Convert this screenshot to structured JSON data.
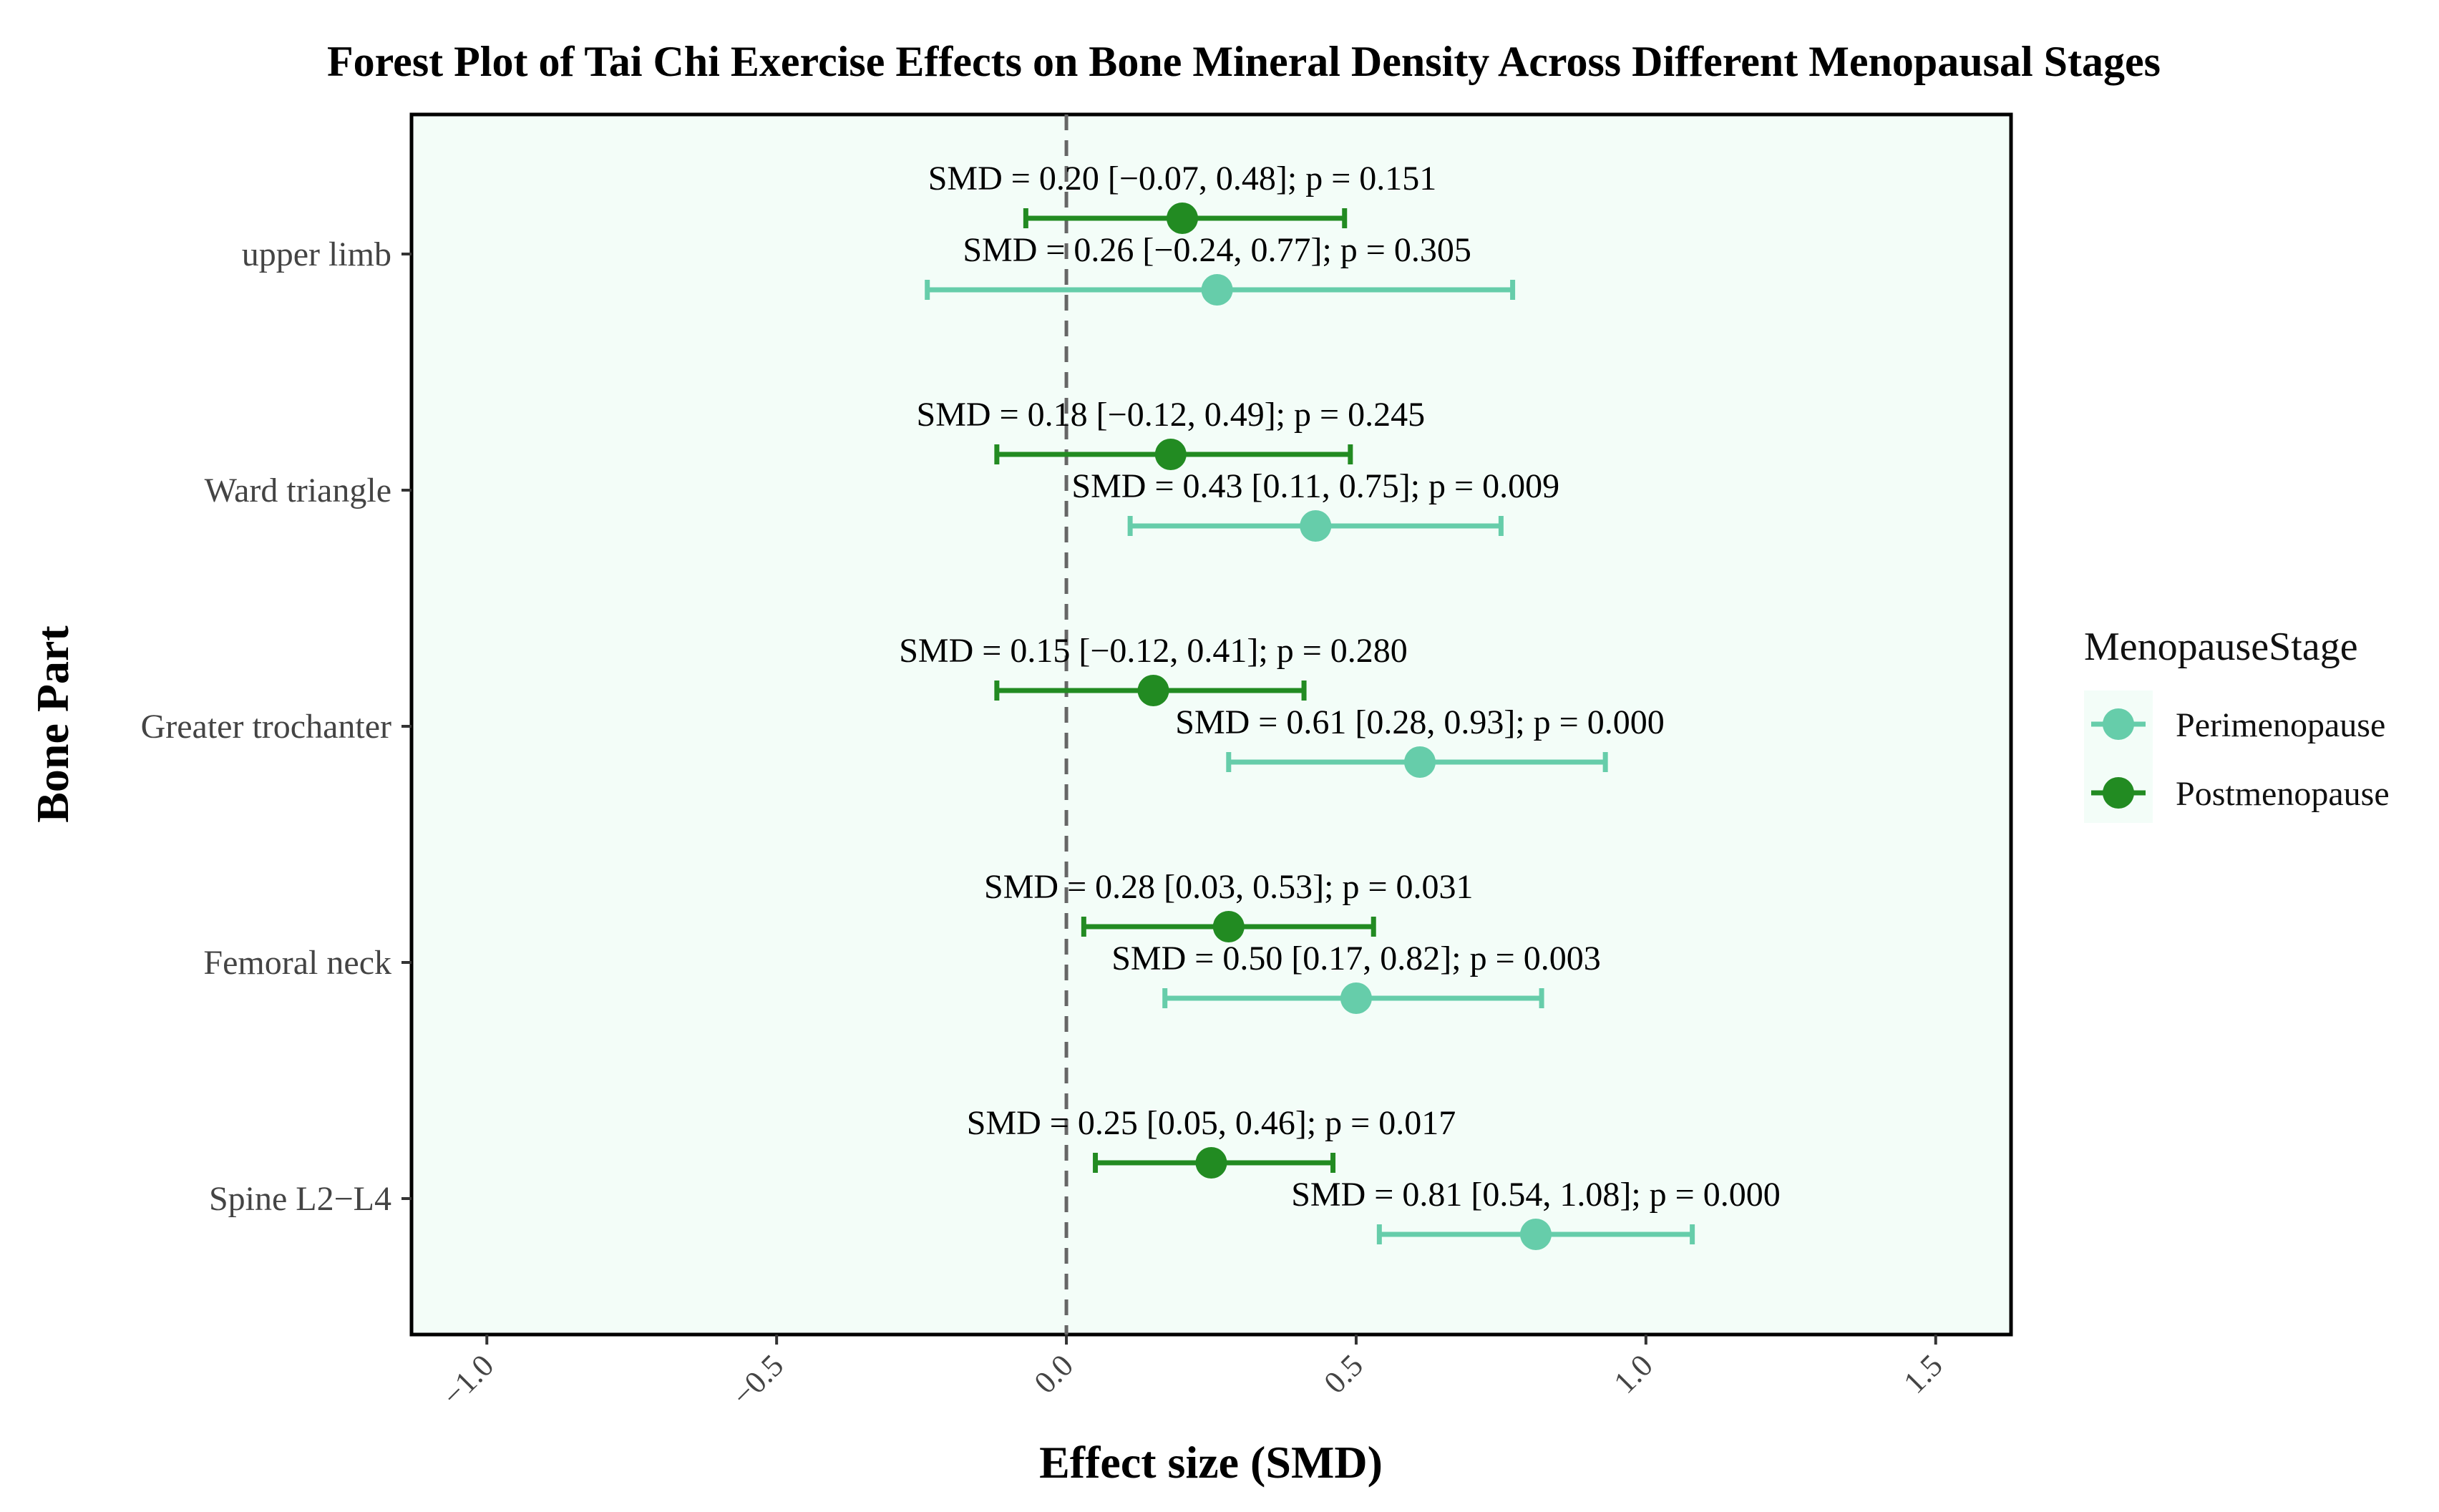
{
  "chart_data": {
    "type": "forest",
    "title": "Forest Plot of Tai Chi Exercise Effects on Bone Mineral Density Across Different Menopausal Stages",
    "xlabel": "Effect size (SMD)",
    "ylabel": "Bone Part",
    "xlim": [
      -1.13,
      1.63
    ],
    "x_ticks": [
      -1.0,
      -0.5,
      0.0,
      0.5,
      1.0,
      1.5
    ],
    "x_tick_labels": [
      "−1.0",
      "−0.5",
      "0.0",
      "0.5",
      "1.0",
      "1.5"
    ],
    "reference_line": 0,
    "categories": [
      "upper limb",
      "Ward triangle",
      "Greater trochanter",
      "Femoral neck",
      "Spine L2−L4"
    ],
    "legend": {
      "title": "MenopauseStage",
      "position": "right",
      "entries": [
        "Perimenopause",
        "Postmenopause"
      ]
    },
    "colors": {
      "Perimenopause": "#66CDAA",
      "Postmenopause": "#228B22",
      "panel_background": "#F3FDF8",
      "reference_line": "#666666"
    },
    "series": [
      {
        "name": "Postmenopause",
        "smd": [
          0.2,
          0.18,
          0.15,
          0.28,
          0.25
        ],
        "lower": [
          -0.07,
          -0.12,
          -0.12,
          0.03,
          0.05
        ],
        "upper": [
          0.48,
          0.49,
          0.41,
          0.53,
          0.46
        ],
        "labels": [
          "SMD = 0.20 [−0.07, 0.48]; p = 0.151",
          "SMD = 0.18 [−0.12, 0.49]; p = 0.245",
          "SMD = 0.15 [−0.12, 0.41]; p = 0.280",
          "SMD = 0.28 [0.03, 0.53]; p = 0.031",
          "SMD = 0.25 [0.05, 0.46]; p = 0.017"
        ]
      },
      {
        "name": "Perimenopause",
        "smd": [
          0.26,
          0.43,
          0.61,
          0.5,
          0.81
        ],
        "lower": [
          -0.24,
          0.11,
          0.28,
          0.17,
          0.54
        ],
        "upper": [
          0.77,
          0.75,
          0.93,
          0.82,
          1.08
        ],
        "labels": [
          "SMD = 0.26 [−0.24, 0.77]; p = 0.305",
          "SMD = 0.43 [0.11, 0.75]; p = 0.009",
          "SMD = 0.61 [0.28, 0.93]; p = 0.000",
          "SMD = 0.50 [0.17, 0.82]; p = 0.003",
          "SMD = 0.81 [0.54, 1.08]; p = 0.000"
        ]
      }
    ]
  }
}
